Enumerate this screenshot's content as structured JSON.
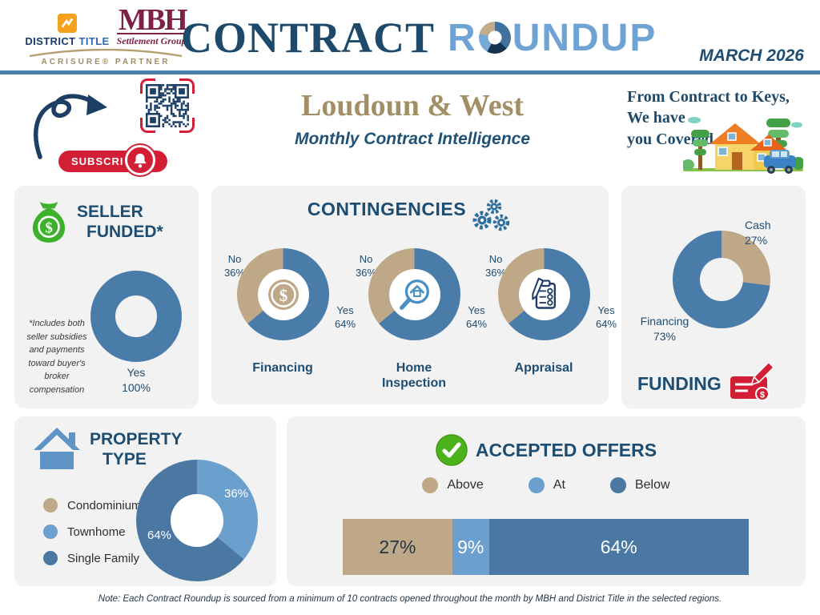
{
  "header": {
    "brand": {
      "district_word": "DISTRICT",
      "title_word": "TITLE",
      "mbh": "MBH",
      "mbh_sub": "Settlement Group",
      "partner": "ACRISURE® PARTNER"
    },
    "title_serif": "CONTRACT",
    "title_sans_pre": "R",
    "title_sans_post": "UNDUP",
    "date": "MARCH 2026"
  },
  "hero": {
    "subscribe": "SUBSCRIBE",
    "region": "Loudoun & West",
    "tagline": "Monthly Contract Intelligence",
    "promo_lines": [
      "From Contract to Keys,",
      "We have",
      "you Covered"
    ]
  },
  "seller_funded": {
    "title_line1": "SELLER",
    "title_line2": "FUNDED*",
    "label": "Yes",
    "value": "100%",
    "footnote": "*Includes both seller subsidies and payments toward buyer's broker compensation"
  },
  "contingencies": {
    "title": "CONTINGENCIES",
    "items": [
      {
        "name": "Financing",
        "no": "No",
        "no_pct": "36%",
        "yes": "Yes",
        "yes_pct": "64%"
      },
      {
        "name": "Home Inspection",
        "no": "No",
        "no_pct": "36%",
        "yes": "Yes",
        "yes_pct": "64%"
      },
      {
        "name": "Appraisal",
        "no": "No",
        "no_pct": "36%",
        "yes": "Yes",
        "yes_pct": "64%"
      }
    ]
  },
  "funding": {
    "title": "FUNDING",
    "cash_label": "Cash",
    "cash_value": "27%",
    "financing_label": "Financing",
    "financing_value": "73%"
  },
  "property_type": {
    "title_line1": "PROPERTY",
    "title_line2": "TYPE",
    "legend": [
      {
        "label": "Condominium"
      },
      {
        "label": "Townhome"
      },
      {
        "label": "Single Family"
      }
    ]
  },
  "accepted_offers": {
    "title": "ACCEPTED OFFERS",
    "legend": [
      "Above",
      "At",
      "Below"
    ]
  },
  "footer": {
    "note": "Note: Each Contract Roundup is sourced from a minimum of 10 contracts opened throughout the month by MBH and District Title in the selected regions."
  },
  "colors": {
    "navy": "#1e4d72",
    "steel_blue": "#4a7ca9",
    "light_blue": "#6b9fce",
    "tan": "#bfa888",
    "red": "#d31f35",
    "green": "#4db31d",
    "maroon": "#7d2147",
    "orange": "#f5a11c",
    "card_bg": "#f2f2f3"
  },
  "chart_data": {
    "seller_funded": {
      "type": "pie",
      "title": "Seller Funded",
      "labels": [
        "Yes"
      ],
      "values": [
        100
      ],
      "display": [
        "100%"
      ],
      "colors": [
        "#4a7ca9"
      ]
    },
    "contingencies": [
      {
        "type": "pie",
        "title": "Financing",
        "labels": [
          "Yes",
          "No"
        ],
        "values": [
          64,
          36
        ],
        "display": [
          "64%",
          "36%"
        ],
        "colors": [
          "#4a7ca9",
          "#bfa888"
        ]
      },
      {
        "type": "pie",
        "title": "Home Inspection",
        "labels": [
          "Yes",
          "No"
        ],
        "values": [
          64,
          36
        ],
        "display": [
          "64%",
          "36%"
        ],
        "colors": [
          "#4a7ca9",
          "#bfa888"
        ]
      },
      {
        "type": "pie",
        "title": "Appraisal",
        "labels": [
          "Yes",
          "No"
        ],
        "values": [
          64,
          36
        ],
        "display": [
          "64%",
          "36%"
        ],
        "colors": [
          "#4a7ca9",
          "#bfa888"
        ]
      }
    ],
    "funding": {
      "type": "pie",
      "title": "Funding",
      "labels": [
        "Cash",
        "Financing"
      ],
      "values": [
        27,
        73
      ],
      "display": [
        "27%",
        "73%"
      ],
      "colors": [
        "#bfa888",
        "#4a7ca9"
      ]
    },
    "property_type": {
      "type": "pie",
      "title": "Property Type",
      "labels": [
        "Condominium",
        "Townhome",
        "Single Family"
      ],
      "values": [
        0,
        36,
        64
      ],
      "display": [
        "",
        "36%",
        "64%"
      ],
      "colors": [
        "#bfa888",
        "#6b9fce",
        "#4a78a2"
      ]
    },
    "accepted_offers": {
      "type": "bar",
      "stacked": true,
      "title": "Accepted Offers",
      "segments": [
        {
          "label": "Above",
          "value": 27,
          "display": "27%",
          "color": "#bfa888"
        },
        {
          "label": "At",
          "value": 9,
          "display": "9%",
          "color": "#6b9fce"
        },
        {
          "label": "Below",
          "value": 64,
          "display": "64%",
          "color": "#4a78a2"
        }
      ]
    }
  }
}
